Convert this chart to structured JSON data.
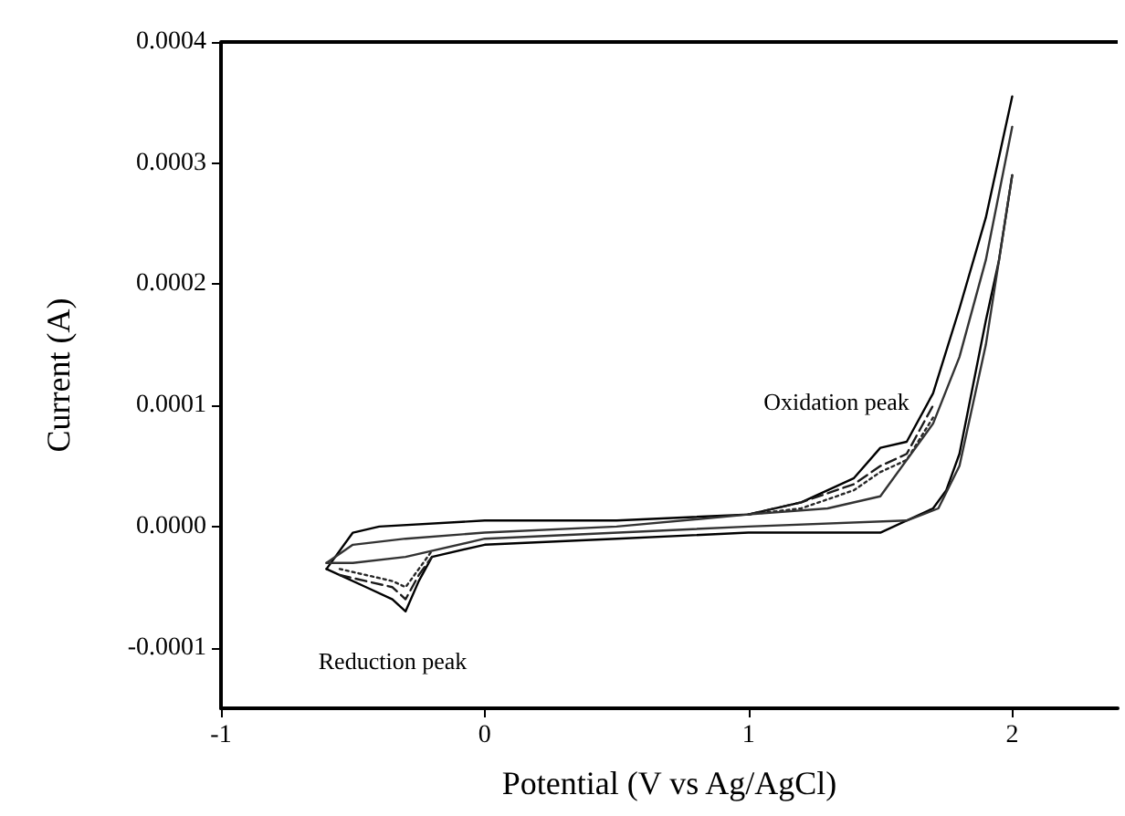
{
  "chart_data": {
    "type": "line",
    "xlabel": "Potential (V vs Ag/AgCl)",
    "ylabel": "Current (A)",
    "xlim": [
      -1,
      2.4
    ],
    "xticks": [
      -1,
      0,
      1,
      2
    ],
    "ylim": [
      -0.00015,
      0.0004
    ],
    "yticks": [
      {
        "value": -0.0001,
        "label": "-0.0001"
      },
      {
        "value": 0,
        "label": "0.0000"
      },
      {
        "value": 0.0001,
        "label": "0.0001"
      },
      {
        "value": 0.0002,
        "label": "0.0002"
      },
      {
        "value": 0.0003,
        "label": "0.0003"
      },
      {
        "value": 0.0004,
        "label": "0.0004"
      }
    ],
    "grid": false,
    "marker": "none",
    "series": [
      {
        "color": "#000000",
        "line_style": "solid",
        "x": [
          -0.6,
          -0.5,
          -0.4,
          0,
          0.5,
          1.0,
          1.2,
          1.4,
          1.5,
          1.6,
          1.7,
          1.8,
          1.9,
          2.0
        ],
        "values": [
          -3.5e-05,
          -5e-06,
          0,
          5e-06,
          5e-06,
          1e-05,
          2e-05,
          4e-05,
          6.5e-05,
          7e-05,
          0.00011,
          0.00018,
          0.000255,
          0.000355
        ]
      },
      {
        "color": "#000000",
        "line_style": "solid",
        "x": [
          -0.6,
          -0.45,
          -0.35,
          -0.3,
          -0.25,
          -0.2,
          0,
          0.5,
          1.0,
          1.5,
          1.7,
          1.75,
          1.8,
          1.9,
          1.95,
          2.0
        ],
        "values": [
          -3.5e-05,
          -5e-05,
          -6e-05,
          -7e-05,
          -4.5e-05,
          -2.5e-05,
          -1.5e-05,
          -1e-05,
          -5e-06,
          -5e-06,
          1.5e-05,
          3e-05,
          6e-05,
          0.00017,
          0.00022,
          0.00029
        ]
      },
      {
        "color": "#1a1a1a",
        "line_style": "dashed",
        "x": [
          1.0,
          1.2,
          1.4,
          1.5,
          1.6,
          1.7
        ],
        "values": [
          1e-05,
          2e-05,
          3.5e-05,
          5e-05,
          6e-05,
          0.0001
        ]
      },
      {
        "color": "#1a1a1a",
        "line_style": "dashed",
        "x": [
          -0.55,
          -0.45,
          -0.35,
          -0.3,
          -0.25,
          -0.2
        ],
        "values": [
          -4e-05,
          -4.5e-05,
          -5e-05,
          -6e-05,
          -4e-05,
          -2.5e-05
        ]
      },
      {
        "color": "#262626",
        "line_style": "dotted",
        "x": [
          1.0,
          1.2,
          1.4,
          1.5,
          1.6,
          1.7
        ],
        "values": [
          1e-05,
          1.5e-05,
          3e-05,
          4.5e-05,
          5.5e-05,
          9e-05
        ]
      },
      {
        "color": "#262626",
        "line_style": "dotted",
        "x": [
          -0.55,
          -0.45,
          -0.35,
          -0.3,
          -0.25,
          -0.2
        ],
        "values": [
          -3.5e-05,
          -4e-05,
          -4.5e-05,
          -5e-05,
          -3.5e-05,
          -2e-05
        ]
      },
      {
        "color": "#333333",
        "line_style": "solid",
        "x": [
          -0.6,
          -0.5,
          -0.3,
          0,
          0.5,
          1.0,
          1.3,
          1.5,
          1.7,
          1.8,
          1.9,
          2.0
        ],
        "values": [
          -3e-05,
          -1.5e-05,
          -1e-05,
          -5e-06,
          0,
          1e-05,
          1.5e-05,
          2.5e-05,
          8.5e-05,
          0.00014,
          0.00022,
          0.00033
        ]
      },
      {
        "color": "#333333",
        "line_style": "solid",
        "x": [
          -0.6,
          -0.5,
          -0.3,
          0,
          1.0,
          1.6,
          1.72,
          1.8,
          1.9,
          2.0
        ],
        "values": [
          -3e-05,
          -3e-05,
          -2.5e-05,
          -1e-05,
          0,
          5e-06,
          1.5e-05,
          5e-05,
          0.00015,
          0.00029
        ]
      }
    ],
    "annotations": [
      "Oxidation peak",
      "Reduction peak"
    ]
  }
}
